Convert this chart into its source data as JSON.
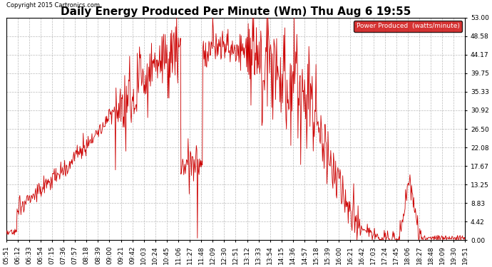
{
  "title": "Daily Energy Produced Per Minute (Wm) Thu Aug 6 19:55",
  "copyright": "Copyright 2015 Cartronics.com",
  "legend_label": "Power Produced  (watts/minute)",
  "legend_bg": "#cc0000",
  "legend_fg": "#ffffff",
  "line_color": "#cc0000",
  "background_color": "#ffffff",
  "grid_color": "#bbbbbb",
  "title_fontsize": 11,
  "axis_fontsize": 6.5,
  "yticks": [
    0.0,
    4.42,
    8.83,
    13.25,
    17.67,
    22.08,
    26.5,
    30.92,
    35.33,
    39.75,
    44.17,
    48.58,
    53.0
  ],
  "ylim": [
    0,
    53.0
  ],
  "xtick_labels": [
    "05:51",
    "06:12",
    "06:33",
    "06:54",
    "07:15",
    "07:36",
    "07:57",
    "08:18",
    "08:39",
    "09:00",
    "09:21",
    "09:42",
    "10:03",
    "10:24",
    "10:45",
    "11:06",
    "11:27",
    "11:48",
    "12:09",
    "12:30",
    "12:51",
    "13:12",
    "13:33",
    "13:54",
    "14:15",
    "14:36",
    "14:57",
    "15:18",
    "15:39",
    "16:00",
    "16:21",
    "16:42",
    "17:03",
    "17:24",
    "17:45",
    "18:06",
    "18:27",
    "18:48",
    "19:09",
    "19:30",
    "19:51"
  ]
}
